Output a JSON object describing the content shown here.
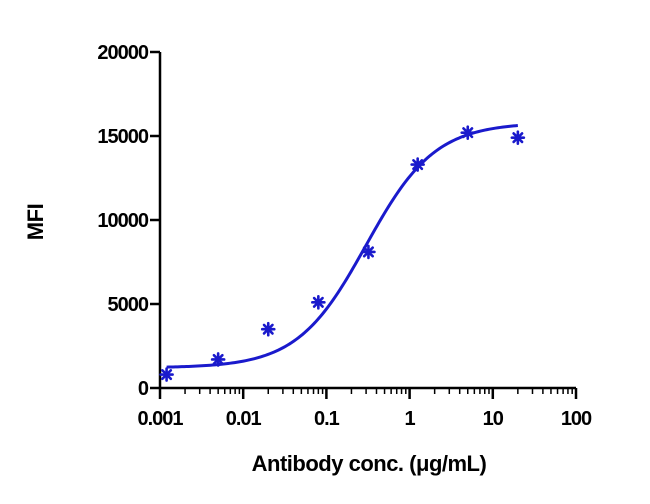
{
  "chart_data": {
    "type": "scatter",
    "title": "",
    "xlabel": "Antibody conc. (μg/mL)",
    "ylabel": "MFI",
    "x_scale": "log",
    "xlim": [
      0.001,
      100
    ],
    "ylim": [
      0,
      20000
    ],
    "x_ticks": [
      "0.001",
      "0.01",
      "0.1",
      "1",
      "10",
      "100"
    ],
    "y_ticks": [
      "0",
      "5000",
      "10000",
      "15000",
      "20000"
    ],
    "grid": false,
    "legend": "none",
    "series": [
      {
        "x": [
          0.0012,
          0.005,
          0.02,
          0.08,
          0.32,
          1.25,
          5,
          20
        ],
        "y": [
          800,
          1700,
          3500,
          5100,
          8100,
          13300,
          15200,
          14900
        ],
        "marker": "asterisk",
        "color": "#1a1acc"
      }
    ],
    "fit_curve": {
      "model": "4PL",
      "bottom": 1200,
      "top": 15800,
      "ec50": 0.3,
      "hill": 1.05,
      "color": "#1a1acc"
    }
  }
}
